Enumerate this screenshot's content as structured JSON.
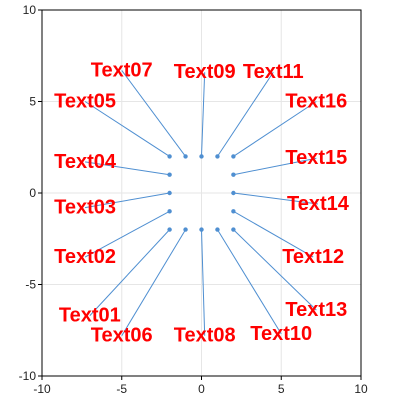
{
  "chart_data": {
    "type": "scatter",
    "title": "",
    "xlabel": "",
    "ylabel": "",
    "xlim": [
      -10,
      10
    ],
    "ylim": [
      -10,
      10
    ],
    "xticks": [
      -10,
      -5,
      0,
      5,
      10
    ],
    "yticks": [
      -10,
      -5,
      0,
      5,
      10
    ],
    "grid": true,
    "legend": "none",
    "colors": {
      "point": "#4f8fd1",
      "leader_line": "#4f8fd1",
      "label": "#ff0000",
      "grid": "#e6e6e6",
      "axis": "#000000"
    },
    "points": [
      {
        "x": -2,
        "y": -2,
        "label": "Text01",
        "label_x": -7.0,
        "label_y": -6.7
      },
      {
        "x": -2,
        "y": -1,
        "label": "Text02",
        "label_x": -7.3,
        "label_y": -3.5
      },
      {
        "x": -2,
        "y": 0,
        "label": "Text03",
        "label_x": -7.3,
        "label_y": -0.8
      },
      {
        "x": -2,
        "y": 1,
        "label": "Text04",
        "label_x": -7.3,
        "label_y": 1.7
      },
      {
        "x": -2,
        "y": 2,
        "label": "Text05",
        "label_x": -7.3,
        "label_y": 5.0
      },
      {
        "x": -1,
        "y": -2,
        "label": "Text06",
        "label_x": -5.0,
        "label_y": -7.8
      },
      {
        "x": -1,
        "y": 2,
        "label": "Text07",
        "label_x": -5.0,
        "label_y": 6.7
      },
      {
        "x": 0,
        "y": -2,
        "label": "Text08",
        "label_x": 0.2,
        "label_y": -7.8
      },
      {
        "x": 0,
        "y": 2,
        "label": "Text09",
        "label_x": 0.2,
        "label_y": 6.6
      },
      {
        "x": 1,
        "y": -2,
        "label": "Text10",
        "label_x": 5.0,
        "label_y": -7.7
      },
      {
        "x": 1,
        "y": 2,
        "label": "Text11",
        "label_x": 4.5,
        "label_y": 6.6
      },
      {
        "x": 2,
        "y": -1,
        "label": "Text12",
        "label_x": 7.0,
        "label_y": -3.5
      },
      {
        "x": 2,
        "y": -2,
        "label": "Text13",
        "label_x": 7.2,
        "label_y": -6.4
      },
      {
        "x": 2,
        "y": 0,
        "label": "Text14",
        "label_x": 7.3,
        "label_y": -0.6
      },
      {
        "x": 2,
        "y": 1,
        "label": "Text15",
        "label_x": 7.2,
        "label_y": 1.9
      },
      {
        "x": 2,
        "y": 2,
        "label": "Text16",
        "label_x": 7.2,
        "label_y": 5.0
      }
    ]
  }
}
